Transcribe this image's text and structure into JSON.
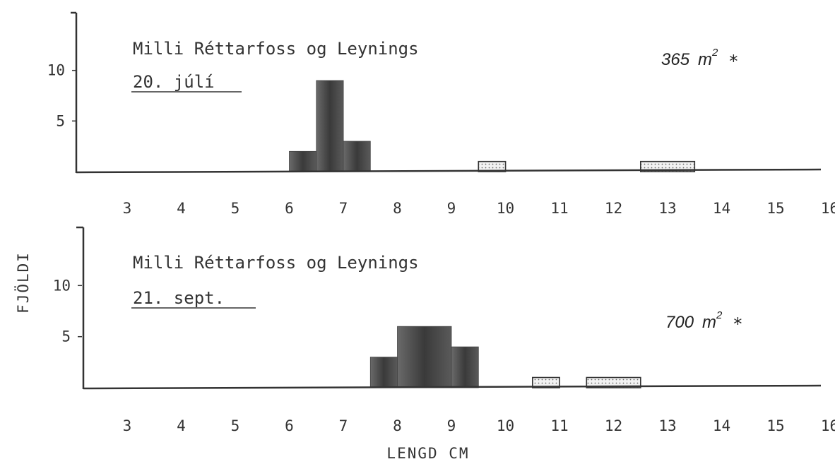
{
  "chart_data": [
    {
      "type": "bar",
      "title": "Milli Réttarfoss og Leynings",
      "subtitle": "20. júlí",
      "annotation": {
        "value": "365",
        "unit": "m",
        "exponent": "2",
        "marker": "*"
      },
      "x_ticks": [
        "3",
        "4",
        "5",
        "6",
        "7",
        "8",
        "9",
        "10",
        "11",
        "12",
        "13",
        "14",
        "15",
        "16"
      ],
      "y_ticks": [
        "5",
        "10"
      ],
      "xlim": [
        2.5,
        16.3
      ],
      "ylim": [
        0,
        15
      ],
      "bars": [
        {
          "x0": 6.0,
          "x1": 6.5,
          "y": 2,
          "fill": "dark"
        },
        {
          "x0": 6.5,
          "x1": 7.0,
          "y": 9,
          "fill": "dark"
        },
        {
          "x0": 7.0,
          "x1": 7.5,
          "y": 3,
          "fill": "dark"
        },
        {
          "x0": 9.5,
          "x1": 10.0,
          "y": 1,
          "fill": "dotted"
        },
        {
          "x0": 12.5,
          "x1": 13.5,
          "y": 1,
          "fill": "dotted"
        }
      ]
    },
    {
      "type": "bar",
      "title": "Milli Réttarfoss og Leynings",
      "subtitle": "21. sept.",
      "annotation": {
        "value": "700",
        "unit": "m",
        "exponent": "2",
        "marker": "*"
      },
      "x_ticks": [
        "3",
        "4",
        "5",
        "6",
        "7",
        "8",
        "9",
        "10",
        "11",
        "12",
        "13",
        "14",
        "15",
        "16"
      ],
      "y_ticks": [
        "5",
        "10"
      ],
      "xlim": [
        2.5,
        16.3
      ],
      "ylim": [
        0,
        15
      ],
      "bars": [
        {
          "x0": 7.5,
          "x1": 8.0,
          "y": 3,
          "fill": "dark"
        },
        {
          "x0": 8.0,
          "x1": 9.0,
          "y": 6,
          "fill": "dark"
        },
        {
          "x0": 9.0,
          "x1": 9.5,
          "y": 4,
          "fill": "dark"
        },
        {
          "x0": 10.5,
          "x1": 11.0,
          "y": 1,
          "fill": "dotted"
        },
        {
          "x0": 11.5,
          "x1": 12.5,
          "y": 1,
          "fill": "dotted"
        }
      ]
    }
  ],
  "ylabel": "FJÖLDI",
  "xlabel": "LENGD CM"
}
